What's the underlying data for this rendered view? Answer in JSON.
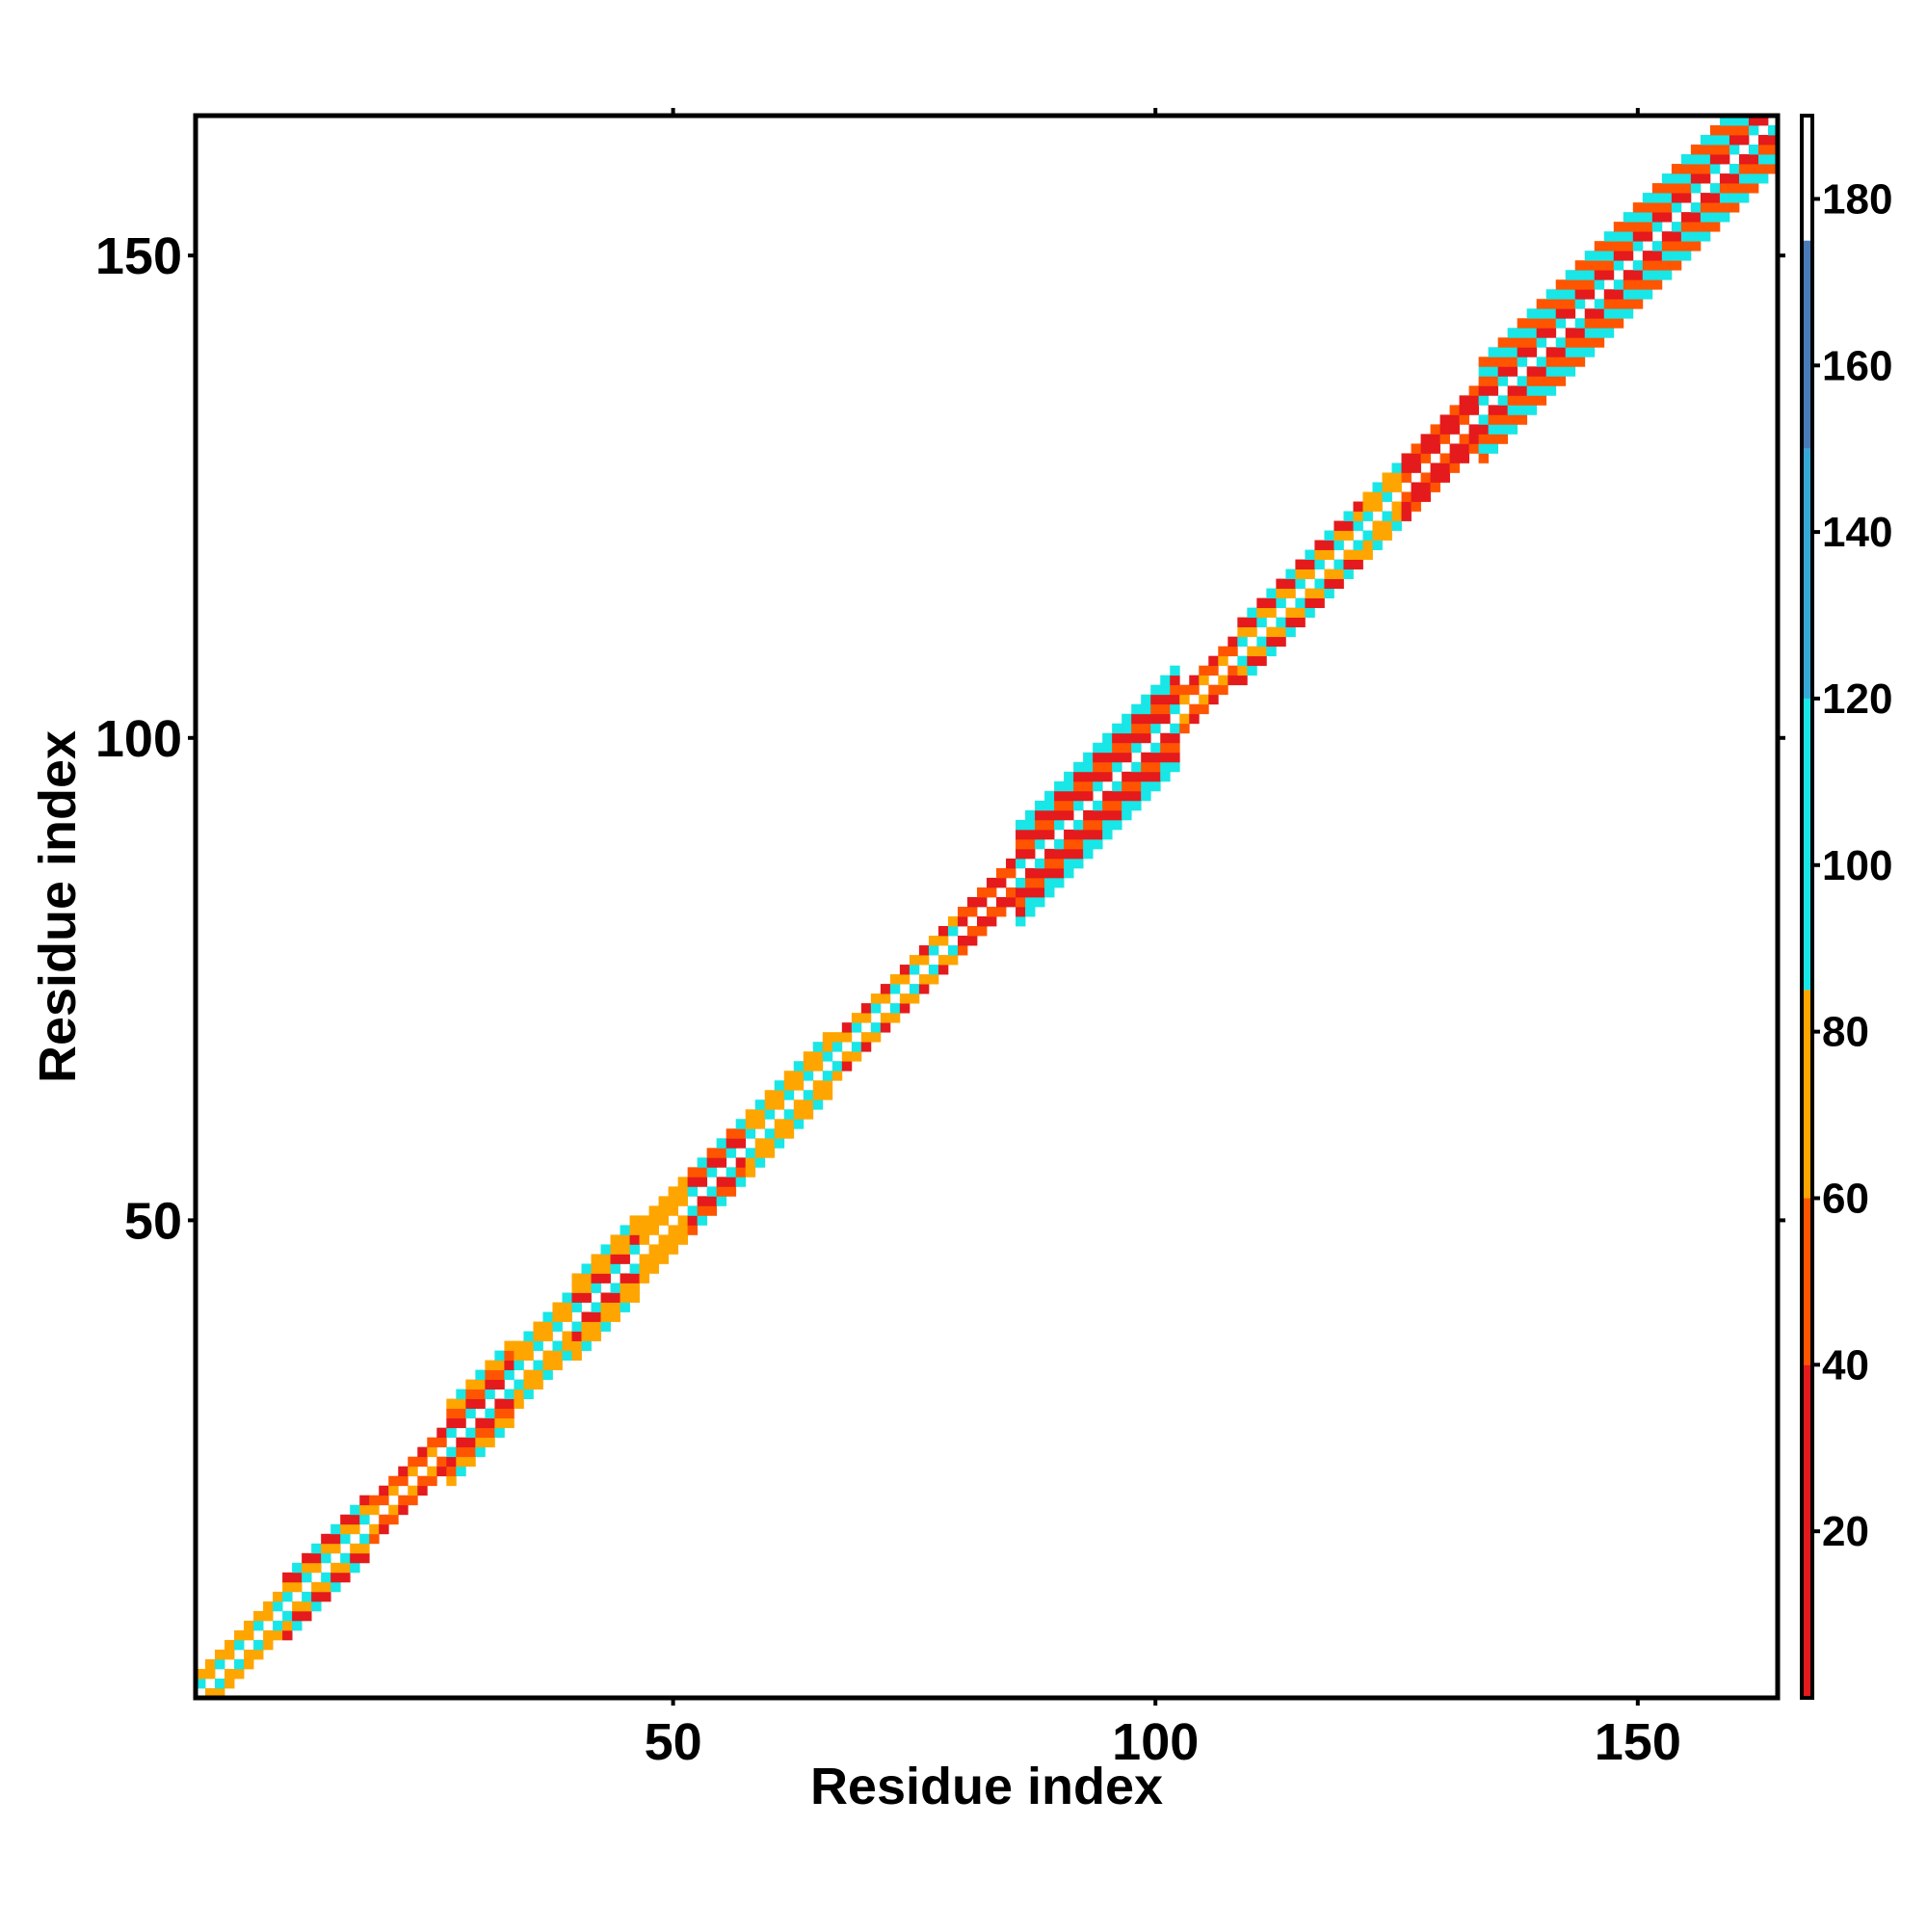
{
  "chart_data": {
    "type": "heatmap",
    "title": "",
    "xlabel": "Residue index",
    "ylabel": "Residue index",
    "xlim": [
      1,
      164
    ],
    "ylim": [
      1,
      164
    ],
    "xticks": [
      50,
      100,
      150
    ],
    "yticks": [
      50,
      100,
      150
    ],
    "grid": false,
    "colorbar": {
      "range": [
        0,
        190
      ],
      "ticks": [
        20,
        40,
        60,
        80,
        100,
        120,
        140,
        160,
        180
      ],
      "color_bands": [
        {
          "from": 0,
          "to": 40,
          "color": "#e41a1c"
        },
        {
          "from": 40,
          "to": 60,
          "color": "#ff5500"
        },
        {
          "from": 60,
          "to": 85,
          "color": "#ffa500"
        },
        {
          "from": 85,
          "to": 120,
          "color": "#19e6e6"
        },
        {
          "from": 120,
          "to": 150,
          "color": "#36a8d6"
        },
        {
          "from": 150,
          "to": 175,
          "color": "#4b7ab8"
        },
        {
          "from": 175,
          "to": 190,
          "color": "#ffffff"
        }
      ]
    },
    "colors": {
      "red": "#e41a1c",
      "orange_red": "#ff5500",
      "orange": "#ffa500",
      "cyan": "#19e6e6"
    },
    "diagonal_band": {
      "description": "symmetric contact map of distance values; non-zero only near the main diagonal",
      "segments": [
        {
          "from": 1,
          "to": 9,
          "halfwidth": 2,
          "pattern": [
            "cyan",
            "orange",
            "orange"
          ]
        },
        {
          "from": 10,
          "to": 18,
          "halfwidth": 3,
          "pattern": [
            "cyan",
            "orange",
            "red"
          ]
        },
        {
          "from": 19,
          "to": 26,
          "halfwidth": 2,
          "pattern": [
            "orange",
            "orange_red",
            "red"
          ]
        },
        {
          "from": 27,
          "to": 33,
          "halfwidth": 4,
          "pattern": [
            "cyan",
            "red",
            "orange_red",
            "orange"
          ]
        },
        {
          "from": 34,
          "to": 39,
          "halfwidth": 3,
          "pattern": [
            "cyan",
            "orange",
            "orange"
          ]
        },
        {
          "from": 40,
          "to": 46,
          "halfwidth": 4,
          "pattern": [
            "cyan",
            "red",
            "orange",
            "orange"
          ]
        },
        {
          "from": 47,
          "to": 51,
          "halfwidth": 3,
          "pattern": [
            "orange",
            "orange",
            "orange"
          ]
        },
        {
          "from": 52,
          "to": 57,
          "halfwidth": 3,
          "pattern": [
            "cyan",
            "red",
            "orange_red"
          ]
        },
        {
          "from": 58,
          "to": 66,
          "halfwidth": 3,
          "pattern": [
            "cyan",
            "orange",
            "orange"
          ]
        },
        {
          "from": 67,
          "to": 79,
          "halfwidth": 2,
          "pattern": [
            "cyan",
            "orange",
            "red"
          ]
        },
        {
          "from": 80,
          "to": 85,
          "halfwidth": 2,
          "pattern": [
            "red",
            "orange_red",
            "red"
          ]
        },
        {
          "from": 86,
          "to": 102,
          "halfwidth": 5,
          "pattern": [
            "cyan",
            "red",
            "orange_red",
            "red",
            "cyan"
          ]
        },
        {
          "from": 103,
          "to": 108,
          "halfwidth": 2,
          "pattern": [
            "orange",
            "orange_red",
            "red"
          ]
        },
        {
          "from": 109,
          "to": 121,
          "halfwidth": 3,
          "pattern": [
            "cyan",
            "orange",
            "red"
          ]
        },
        {
          "from": 122,
          "to": 125,
          "halfwidth": 3,
          "pattern": [
            "cyan",
            "orange",
            "orange"
          ]
        },
        {
          "from": 126,
          "to": 133,
          "halfwidth": 3,
          "pattern": [
            "orange_red",
            "red",
            "red"
          ]
        },
        {
          "from": 134,
          "to": 164,
          "halfwidth": 5,
          "pattern": [
            "cyan",
            "red",
            "orange_red",
            "cyan",
            "orange_red"
          ]
        }
      ]
    }
  }
}
